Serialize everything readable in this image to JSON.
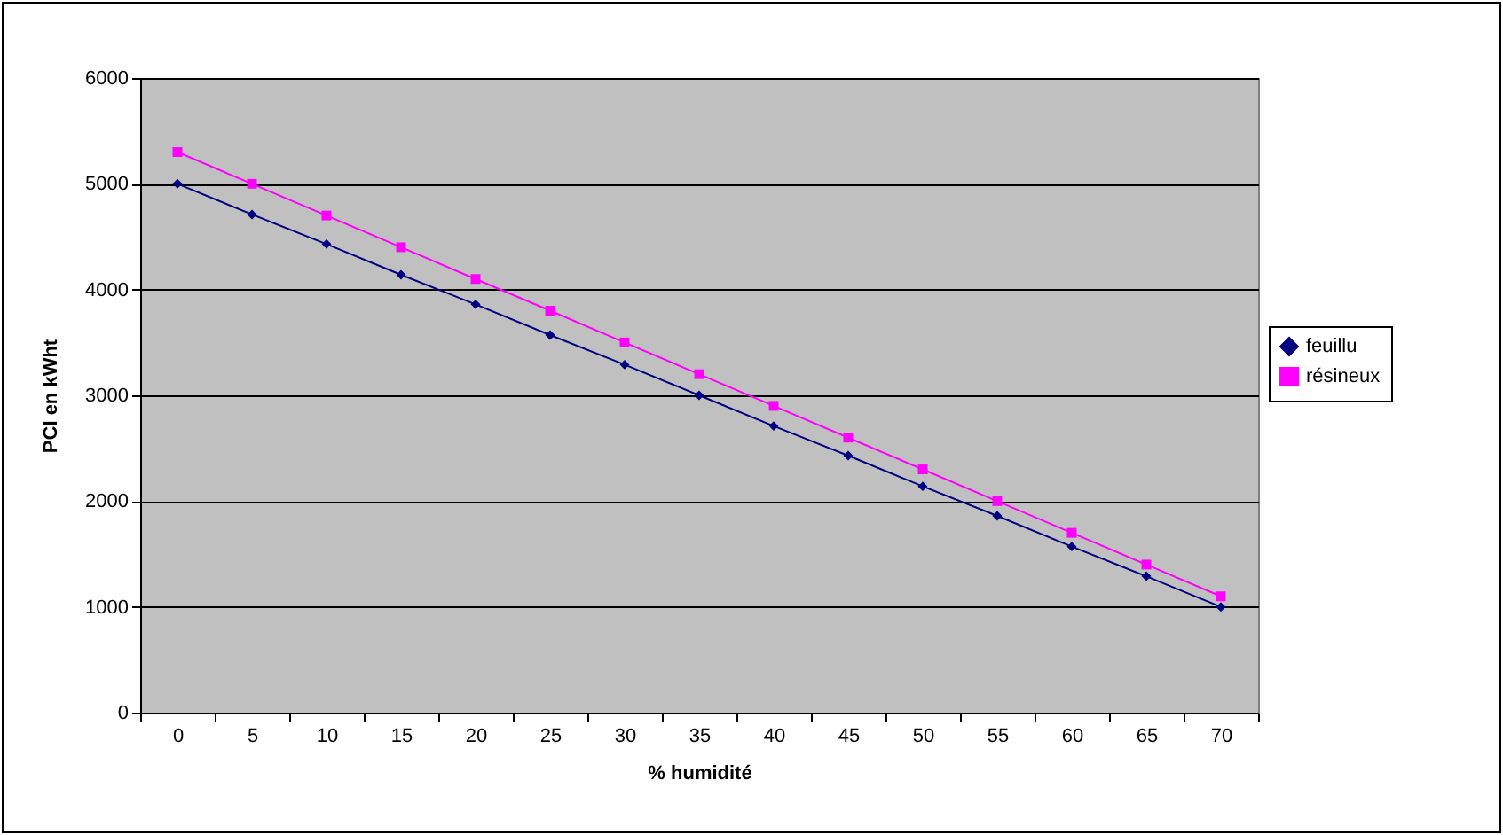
{
  "chart_data": {
    "type": "line",
    "xlabel": "% humidité",
    "ylabel": "PCI en kWht",
    "categories": [
      "0",
      "5",
      "10",
      "15",
      "20",
      "25",
      "30",
      "35",
      "40",
      "45",
      "50",
      "55",
      "60",
      "65",
      "70"
    ],
    "series": [
      {
        "name": "feuillu",
        "color": "#000080",
        "marker": "diamond",
        "values": [
          5000,
          4710,
          4430,
          4140,
          3860,
          3570,
          3290,
          3000,
          2710,
          2430,
          2140,
          1860,
          1570,
          1290,
          1000
        ]
      },
      {
        "name": "résineux",
        "color": "#ff00ff",
        "marker": "square",
        "values": [
          5300,
          5000,
          4700,
          4400,
          4100,
          3800,
          3500,
          3200,
          2900,
          2600,
          2300,
          2000,
          1700,
          1400,
          1100
        ]
      }
    ],
    "ylim": [
      0,
      6000
    ],
    "yticks": [
      0,
      1000,
      2000,
      3000,
      4000,
      5000,
      6000
    ],
    "grid": "y",
    "legend": "right"
  }
}
